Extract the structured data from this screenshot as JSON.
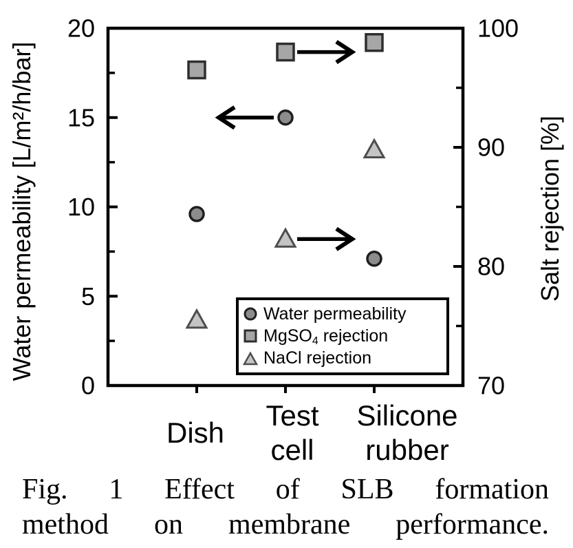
{
  "figure": {
    "caption_line1": "Fig. 1 Effect of SLB formation",
    "caption_line2": "method on membrane performance."
  },
  "legend": {
    "items": [
      {
        "marker": "circle",
        "prefix": "Water permeability",
        "sub": "",
        "suffix": ""
      },
      {
        "marker": "square",
        "prefix": "MgSO",
        "sub": "4",
        "suffix": " rejection"
      },
      {
        "marker": "triangle",
        "prefix": "NaCl rejection",
        "sub": "",
        "suffix": ""
      }
    ]
  },
  "chart_data": {
    "type": "scatter",
    "categories": [
      "Dish",
      "Test\ncell",
      "Silicone\nrubber"
    ],
    "left_axis": {
      "label": "Water permeability [L/m²/h/bar]",
      "min": 0,
      "max": 20,
      "major_ticks": [
        0,
        5,
        10,
        15,
        20
      ],
      "tick_labels": [
        "0",
        "5",
        "10",
        "15",
        "20"
      ],
      "minor_ticks": [
        2.5,
        7.5,
        12.5,
        17.5
      ]
    },
    "right_axis": {
      "label": "Salt rejection [%]",
      "min": 70,
      "max": 100,
      "major_ticks": [
        70,
        80,
        90,
        100
      ],
      "tick_labels": [
        "70",
        "80",
        "90",
        "100"
      ],
      "minor_ticks": [
        75,
        85,
        95
      ]
    },
    "series": [
      {
        "name": "Water permeability",
        "axis": "left",
        "marker": "circle",
        "fill": "#8c8c8c",
        "stroke": "#1f1f1f",
        "values": [
          9.6,
          15.0,
          7.1
        ]
      },
      {
        "name": "MgSO4 rejection",
        "axis": "right",
        "marker": "square",
        "fill": "#a6a6a6",
        "stroke": "#2e2e2e",
        "values": [
          96.5,
          98.0,
          98.8
        ]
      },
      {
        "name": "NaCl rejection",
        "axis": "right",
        "marker": "triangle",
        "fill": "#c4c4c4",
        "stroke": "#4d4d4d",
        "values": [
          75.5,
          82.3,
          89.8
        ]
      }
    ],
    "annotations": [
      {
        "series": 0,
        "category": 1,
        "direction": "left",
        "meaning": "read on left axis"
      },
      {
        "series": 1,
        "category": 1,
        "direction": "right",
        "meaning": "read on right axis"
      },
      {
        "series": 2,
        "category": 1,
        "direction": "right",
        "meaning": "read on right axis"
      }
    ],
    "grid": false,
    "legend_position": "inside-bottom-right"
  }
}
